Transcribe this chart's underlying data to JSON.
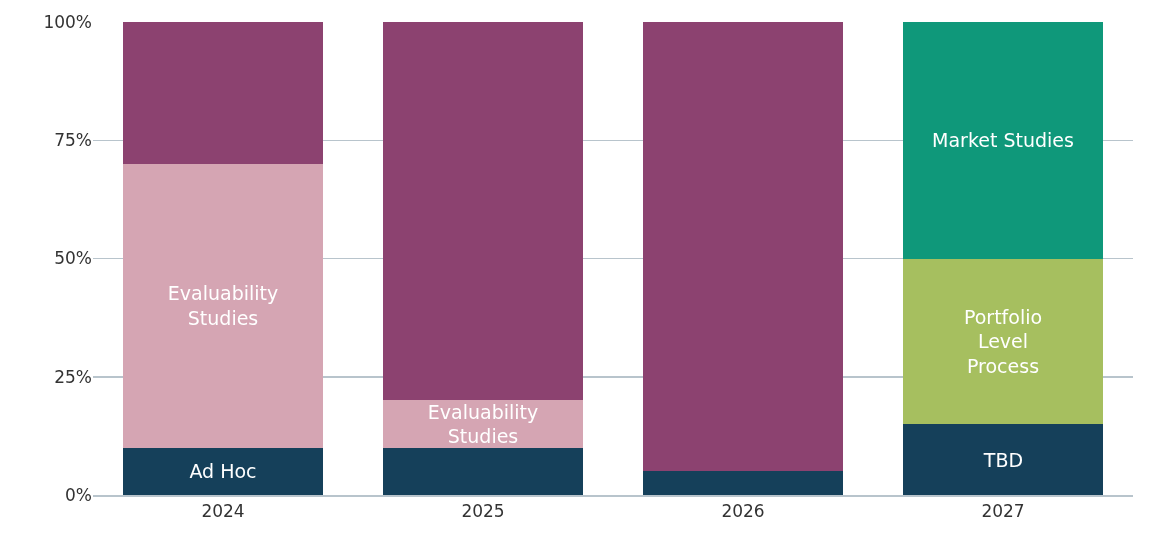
{
  "chart_data": {
    "type": "bar",
    "stacked": true,
    "categories": [
      "2024",
      "2025",
      "2026",
      "2027"
    ],
    "series": [
      {
        "color": "#15405a",
        "values": [
          10,
          10,
          5,
          15
        ],
        "value_labels": [
          "Ad Hoc",
          null,
          null,
          "TBD"
        ]
      },
      {
        "color": "#d5a5b3",
        "values": [
          60,
          10,
          null,
          null
        ],
        "value_labels": [
          "Evaluability\nStudies",
          "Evaluability\nStudies",
          null,
          null
        ]
      },
      {
        "color": "#8c4270",
        "values": [
          30,
          80,
          95,
          null
        ]
      },
      {
        "color": "#a6bf5f",
        "values": [
          null,
          null,
          null,
          35
        ],
        "value_labels": [
          null,
          null,
          null,
          "Portfolio\nLevel\nProcess"
        ]
      },
      {
        "color": "#0f987a",
        "values": [
          null,
          null,
          null,
          50
        ],
        "value_labels": [
          null,
          null,
          null,
          "Market Studies"
        ]
      }
    ],
    "ylim": [
      0,
      100
    ],
    "yticks": [
      {
        "value": 0,
        "label": "0%"
      },
      {
        "value": 25,
        "label": "25%"
      },
      {
        "value": 50,
        "label": "50%"
      },
      {
        "value": 75,
        "label": "75%"
      },
      {
        "value": 100,
        "label": "100%"
      }
    ],
    "grid": "y"
  }
}
